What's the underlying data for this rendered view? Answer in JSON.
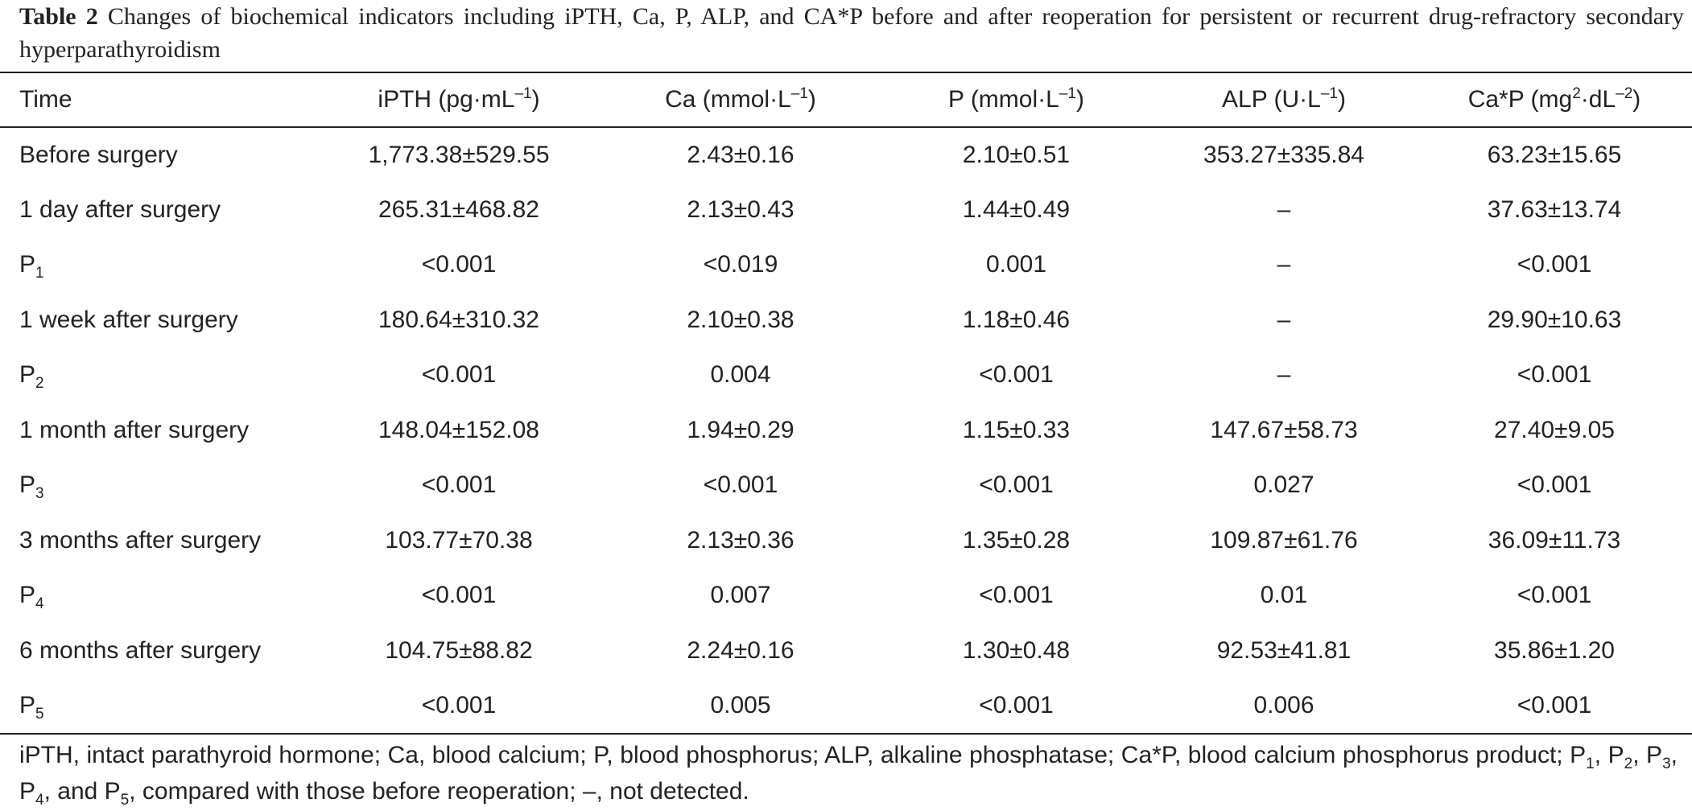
{
  "caption": {
    "label": "Table 2",
    "text": " Changes of biochemical indicators including iPTH, Ca, P, ALP, and CA*P before and after reoperation for persistent or recurrent drug-refractory secondary hyperparathyroidism"
  },
  "table": {
    "headers": [
      {
        "main": "Time",
        "sup1": "",
        "mid": "",
        "sup2": "",
        "tail": ""
      },
      {
        "main": "iPTH (pg·mL",
        "sup1": "–1",
        "mid": ")",
        "sup2": "",
        "tail": ""
      },
      {
        "main": "Ca (mmol·L",
        "sup1": "–1",
        "mid": ")",
        "sup2": "",
        "tail": ""
      },
      {
        "main": "P (mmol·L",
        "sup1": "–1",
        "mid": ")",
        "sup2": "",
        "tail": ""
      },
      {
        "main": "ALP (U·L",
        "sup1": "–1",
        "mid": ")",
        "sup2": "",
        "tail": ""
      },
      {
        "main": "Ca*P (mg",
        "sup1": "2",
        "mid": "·dL",
        "sup2": "–2",
        "tail": ")"
      }
    ],
    "rows": [
      {
        "label": "Before surgery",
        "sub": "",
        "cells": [
          "1,773.38±529.55",
          "2.43±0.16",
          "2.10±0.51",
          "353.27±335.84",
          "63.23±15.65"
        ]
      },
      {
        "label": "1 day after surgery",
        "sub": "",
        "cells": [
          "265.31±468.82",
          "2.13±0.43",
          "1.44±0.49",
          "–",
          "37.63±13.74"
        ]
      },
      {
        "label": "P",
        "sub": "1",
        "cells": [
          "<0.001",
          "<0.019",
          "0.001",
          "–",
          "<0.001"
        ]
      },
      {
        "label": "1 week after surgery",
        "sub": "",
        "cells": [
          "180.64±310.32",
          "2.10±0.38",
          "1.18±0.46",
          "–",
          "29.90±10.63"
        ]
      },
      {
        "label": "P",
        "sub": "2",
        "cells": [
          "<0.001",
          "0.004",
          "<0.001",
          "–",
          "<0.001"
        ]
      },
      {
        "label": "1 month after surgery",
        "sub": "",
        "cells": [
          "148.04±152.08",
          "1.94±0.29",
          "1.15±0.33",
          "147.67±58.73",
          "27.40±9.05"
        ]
      },
      {
        "label": "P",
        "sub": "3",
        "cells": [
          "<0.001",
          "<0.001",
          "<0.001",
          "0.027",
          "<0.001"
        ]
      },
      {
        "label": "3 months after surgery",
        "sub": "",
        "cells": [
          "103.77±70.38",
          "2.13±0.36",
          "1.35±0.28",
          "109.87±61.76",
          "36.09±11.73"
        ]
      },
      {
        "label": "P",
        "sub": "4",
        "cells": [
          "<0.001",
          "0.007",
          "<0.001",
          "0.01",
          "<0.001"
        ]
      },
      {
        "label": "6 months after surgery",
        "sub": "",
        "cells": [
          "104.75±88.82",
          "2.24±0.16",
          "1.30±0.48",
          "92.53±41.81",
          "35.86±1.20"
        ]
      },
      {
        "label": "P",
        "sub": "5",
        "cells": [
          "<0.001",
          "0.005",
          "<0.001",
          "0.006",
          "<0.001"
        ]
      }
    ]
  },
  "footnote": {
    "part1": "iPTH, intact parathyroid hormone; Ca, blood calcium; P, blood phosphorus; ALP, alkaline phosphatase; Ca*P, blood calcium phosphorus product; P",
    "sub1": "1",
    "sep1": ", P",
    "sub2": "2",
    "sep2": ", P",
    "sub3": "3",
    "sep3": ", P",
    "sub4": "4",
    "sep4": ", and P",
    "sub5": "5",
    "part2": ", compared with those before reoperation; –, not detected."
  }
}
